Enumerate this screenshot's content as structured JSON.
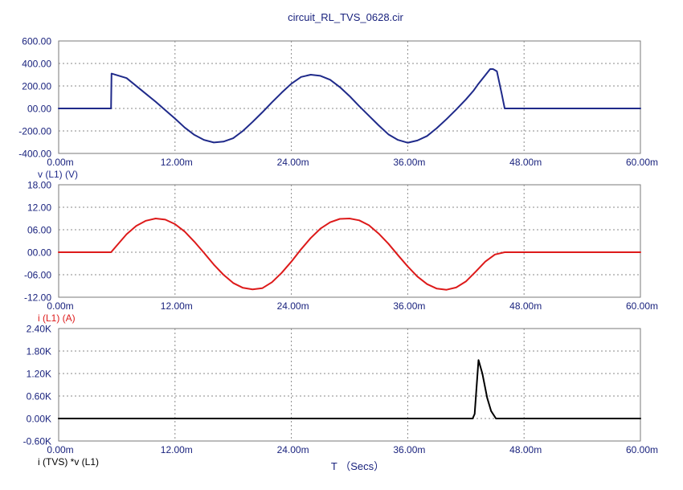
{
  "chart_data": {
    "type": "line",
    "title": "circuit_RL_TVS_0628.cir",
    "xlabel": "T  （Secs）",
    "xlim": [
      0,
      60
    ],
    "x_ticks": [
      "0.00m",
      "12.00m",
      "24.00m",
      "36.00m",
      "48.00m",
      "60.00m"
    ],
    "x_tick_values": [
      0,
      12,
      24,
      36,
      48,
      60
    ],
    "grid": true,
    "panels": [
      {
        "id": "v-l1",
        "ylabel": "v (L1) (V)",
        "ylim": [
          -400,
          600
        ],
        "y_ticks": [
          "600.00",
          "400.00",
          "200.00",
          "00.00",
          "-200.00",
          "-400.00"
        ],
        "y_tick_values": [
          600,
          400,
          200,
          0,
          -200,
          -400
        ],
        "color": "#1f2a8a",
        "label_color": "#1f2a8a",
        "x": [
          0,
          5.4,
          5.45,
          7,
          9,
          10,
          11,
          12,
          13,
          14,
          15,
          16,
          17,
          18,
          19,
          20,
          21,
          22,
          23,
          24,
          25,
          26,
          27,
          28,
          29,
          30,
          31,
          32,
          33,
          34,
          35,
          36,
          37,
          38,
          39,
          40,
          41,
          42,
          42.8,
          43.3,
          44.5,
          44.8,
          45.2,
          45.7,
          46,
          60
        ],
        "values": [
          0,
          0,
          310,
          270,
          130,
          60,
          -15,
          -90,
          -170,
          -235,
          -280,
          -303,
          -295,
          -265,
          -200,
          -120,
          -35,
          55,
          140,
          220,
          280,
          300,
          290,
          255,
          190,
          110,
          20,
          -65,
          -150,
          -230,
          -280,
          -305,
          -285,
          -245,
          -175,
          -95,
          -10,
          80,
          160,
          220,
          350,
          350,
          330,
          130,
          0,
          0
        ]
      },
      {
        "id": "i-l1",
        "ylabel": "i (L1) (A)",
        "ylim": [
          -12,
          18
        ],
        "y_ticks": [
          "18.00",
          "12.00",
          "06.00",
          "00.00",
          "-06.00",
          "-12.00"
        ],
        "y_tick_values": [
          18,
          12,
          6,
          0,
          -6,
          -12
        ],
        "color": "#dd1a1a",
        "label_color": "#dd1a1a",
        "x": [
          0,
          5.4,
          6,
          7,
          8,
          9,
          10,
          11,
          12,
          13,
          14,
          15,
          16,
          17,
          18,
          19,
          20,
          21,
          22,
          23,
          24,
          25,
          26,
          27,
          28,
          29,
          30,
          31,
          32,
          33,
          34,
          35,
          36,
          37,
          38,
          39,
          40,
          41,
          42,
          43,
          44,
          45,
          46,
          60
        ],
        "values": [
          0,
          0,
          1.8,
          4.8,
          7.0,
          8.4,
          9.0,
          8.7,
          7.5,
          5.5,
          2.8,
          -0.2,
          -3.3,
          -6.0,
          -8.2,
          -9.5,
          -9.9,
          -9.6,
          -8.0,
          -5.5,
          -2.5,
          0.8,
          3.8,
          6.3,
          8.0,
          8.9,
          9.0,
          8.5,
          7.2,
          5.0,
          2.3,
          -0.8,
          -3.8,
          -6.5,
          -8.5,
          -9.7,
          -10.0,
          -9.4,
          -7.8,
          -5.2,
          -2.5,
          -0.6,
          0,
          0
        ]
      },
      {
        "id": "p-tvs",
        "ylabel": "i (TVS) *v (L1)",
        "ylim": [
          -0.6,
          2.4
        ],
        "y_ticks": [
          "2.40K",
          "1.80K",
          "1.20K",
          "0.60K",
          "0.00K",
          "-0.60K"
        ],
        "y_tick_values": [
          2.4,
          1.8,
          1.2,
          0.6,
          0,
          -0.6
        ],
        "color": "#000000",
        "label_color": "#000000",
        "x": [
          0,
          42.7,
          42.9,
          43.3,
          43.7,
          44.2,
          44.6,
          45.1,
          60
        ],
        "values": [
          0,
          0,
          0.12,
          1.56,
          1.2,
          0.55,
          0.2,
          0,
          0
        ]
      }
    ]
  }
}
